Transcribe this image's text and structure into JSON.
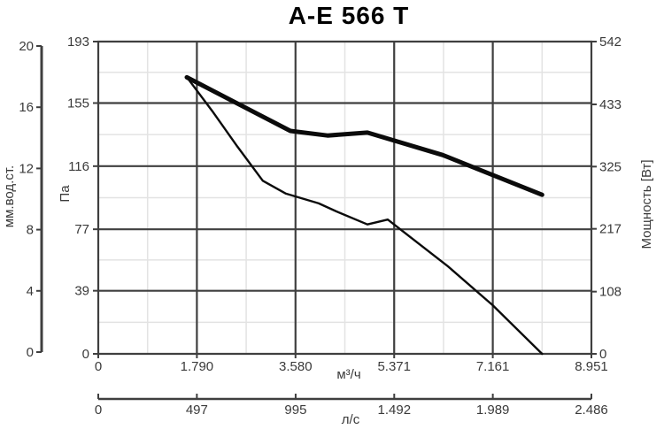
{
  "colors": {
    "background": "#ffffff",
    "curve": "#0b0b0b",
    "grid_major": "#3f3f3f",
    "grid_minor": "#e3e3e3",
    "text": "#3a3a3a",
    "title_text": "#000000"
  },
  "chart_data": {
    "type": "line",
    "title": "A-E 566 T",
    "x_unit": "м³/ч",
    "legend": "none",
    "grid": {
      "x_minor": [
        895,
        2685,
        4476,
        6266,
        8056
      ],
      "y_minor_pa": [
        19.5,
        58,
        96.5,
        135.5,
        174
      ]
    },
    "axes": {
      "left_outer": {
        "label": "мм.вод.ст.",
        "range": [
          0,
          20
        ],
        "ticks": {
          "values": [
            0,
            4,
            8,
            12,
            16,
            20
          ],
          "labels": [
            "0",
            "4",
            "8",
            "12",
            "16",
            "20"
          ]
        }
      },
      "left_inner": {
        "label": "Па",
        "range": [
          0,
          193
        ],
        "ticks": {
          "values": [
            0,
            39,
            77,
            116,
            155,
            193
          ],
          "labels": [
            "0",
            "39",
            "77",
            "116",
            "155",
            "193"
          ]
        }
      },
      "right": {
        "label": "Мощность [Вт]",
        "range": [
          0,
          542
        ],
        "ticks": {
          "values": [
            0,
            108,
            217,
            325,
            433,
            542
          ],
          "labels": [
            "0",
            "108",
            "217",
            "325",
            "433",
            "542"
          ]
        }
      },
      "bottom_inner": {
        "label": "м³/ч",
        "range": [
          0,
          8951
        ],
        "ticks": {
          "values": [
            0,
            1790,
            3580,
            5371,
            7161,
            8951
          ],
          "labels": [
            "0",
            "1.790",
            "3.580",
            "5.371",
            "7.161",
            "8.951"
          ]
        }
      },
      "bottom_outer": {
        "label": "л/с",
        "range": [
          0,
          2486
        ],
        "ticks": {
          "values": [
            0,
            497,
            995,
            1492,
            1989,
            2486
          ],
          "labels": [
            "0",
            "497",
            "995",
            "1.492",
            "1.989",
            "2.486"
          ]
        }
      }
    },
    "series": [
      {
        "name": "pressure-curve",
        "axis": "left_inner",
        "unit": "Па",
        "style": "thin",
        "points": [
          [
            1607,
            171
          ],
          [
            2070,
            150
          ],
          [
            2528,
            128
          ],
          [
            2986,
            107
          ],
          [
            3407,
            99
          ],
          [
            4002,
            93
          ],
          [
            4323,
            88
          ],
          [
            4885,
            80
          ],
          [
            5255,
            83
          ],
          [
            6350,
            54
          ],
          [
            7160,
            30
          ],
          [
            8056,
            0
          ]
        ]
      },
      {
        "name": "power-curve",
        "axis": "right",
        "unit": "Вт",
        "style": "thick",
        "points": [
          [
            1607,
            480
          ],
          [
            3487,
            387
          ],
          [
            4160,
            379
          ],
          [
            4885,
            384
          ],
          [
            6255,
            345
          ],
          [
            8056,
            276
          ]
        ]
      }
    ]
  }
}
